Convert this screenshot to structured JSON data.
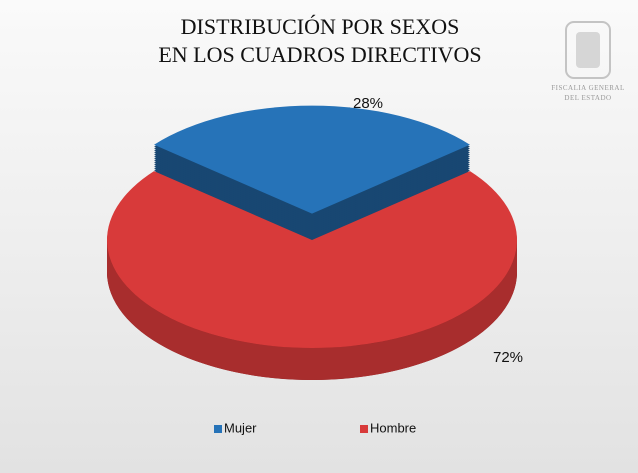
{
  "chart_data": {
    "type": "pie3d",
    "title": [
      "DISTRIBUCIÓN POR SEXOS",
      "EN LOS CUADROS DIRECTIVOS"
    ],
    "categories": [
      "Mujer",
      "Hombre"
    ],
    "values": [
      28,
      72
    ],
    "value_labels": [
      "28%",
      "72%"
    ],
    "colors": [
      "#2673b8",
      "#d83a3a"
    ],
    "legend": "bottom"
  },
  "logo": {
    "lines": [
      "FISCALIA GENERAL",
      "DEL ESTADO"
    ]
  }
}
